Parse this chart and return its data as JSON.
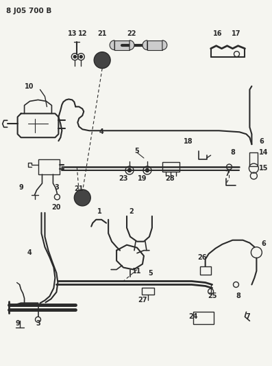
{
  "title": "8 J05 700 B",
  "bg_color": "#f5f5f0",
  "line_color": "#2a2a2a",
  "title_fontsize": 7.5,
  "label_fontsize": 7,
  "fig_width": 3.97,
  "fig_height": 5.33
}
